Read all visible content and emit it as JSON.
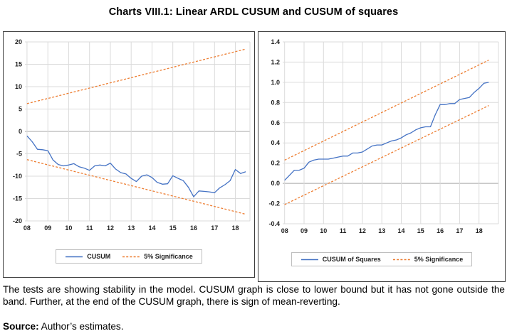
{
  "title": "Charts VIII.1: Linear ARDL CUSUM and CUSUM of squares",
  "caption": {
    "body": "The tests are showing stability in the model. CUSUM graph is close to lower bound but it has not gone outside the band. Further, at the end of the CUSUM graph, there is sign of mean-reverting.",
    "source_label": "Source:",
    "source_text": " Author’s estimates."
  },
  "colors": {
    "series_blue": "#4472C4",
    "band_orange": "#ED7D31",
    "grid": "#DBDBDB",
    "zero_line": "#A6A6A6",
    "panel_border": "#3d3d3d"
  },
  "chart_data": [
    {
      "type": "line",
      "name": "CUSUM stability test",
      "xlim": [
        7.9,
        18.7
      ],
      "ylim": [
        -20,
        20
      ],
      "x_tick_values": [
        8,
        9,
        10,
        11,
        12,
        13,
        14,
        15,
        16,
        17,
        18
      ],
      "x_tick_labels": [
        "08",
        "09",
        "10",
        "11",
        "12",
        "13",
        "14",
        "15",
        "16",
        "17",
        "18"
      ],
      "y_tick_values": [
        20,
        15,
        10,
        5,
        0,
        -5,
        -10,
        -15,
        -20
      ],
      "y_tick_labels": [
        "20",
        "15",
        "10",
        "5",
        "0",
        "-5",
        "-10",
        "-15",
        "-20"
      ],
      "grid": true,
      "right_edge_gridline": true,
      "legend_position": "bottom",
      "legend": [
        {
          "label": "CUSUM",
          "style": "solid",
          "color": "#4472C4"
        },
        {
          "label": "5% Significance",
          "style": "dashed",
          "color": "#ED7D31"
        }
      ],
      "series": [
        {
          "name": "CUSUM",
          "style": "solid",
          "color": "#4472C4",
          "x": [
            8.0,
            8.25,
            8.5,
            8.75,
            9.0,
            9.25,
            9.5,
            9.75,
            10.0,
            10.25,
            10.5,
            10.75,
            11.0,
            11.25,
            11.5,
            11.75,
            12.0,
            12.25,
            12.5,
            12.75,
            13.0,
            13.25,
            13.5,
            13.75,
            14.0,
            14.25,
            14.5,
            14.75,
            15.0,
            15.25,
            15.5,
            15.75,
            16.0,
            16.25,
            16.5,
            16.75,
            17.0,
            17.25,
            17.5,
            17.75,
            18.0,
            18.25,
            18.5
          ],
          "y": [
            -1.0,
            -2.3,
            -4.0,
            -4.1,
            -4.3,
            -6.4,
            -7.4,
            -7.7,
            -7.5,
            -7.2,
            -7.9,
            -8.2,
            -8.7,
            -7.7,
            -7.5,
            -7.7,
            -7.1,
            -8.4,
            -9.2,
            -9.5,
            -10.5,
            -11.2,
            -10.0,
            -9.7,
            -10.3,
            -11.4,
            -11.8,
            -11.7,
            -9.9,
            -10.5,
            -11.0,
            -12.5,
            -14.6,
            -13.3,
            -13.4,
            -13.5,
            -13.7,
            -12.6,
            -11.9,
            -11.0,
            -8.5,
            -9.4,
            -9.0
          ]
        },
        {
          "name": "5% Significance (upper bound)",
          "style": "dashed",
          "color": "#ED7D31",
          "x": [
            8.0,
            18.5
          ],
          "y": [
            6.2,
            18.4
          ]
        },
        {
          "name": "5% Significance (lower bound)",
          "style": "dashed",
          "color": "#ED7D31",
          "x": [
            8.0,
            18.5
          ],
          "y": [
            -6.3,
            -18.5
          ]
        }
      ]
    },
    {
      "type": "line",
      "name": "CUSUM of squares stability test",
      "xlim": [
        7.9,
        19.0
      ],
      "ylim": [
        -0.4,
        1.4
      ],
      "x_tick_values": [
        8,
        9,
        10,
        11,
        12,
        13,
        14,
        15,
        16,
        17,
        18
      ],
      "x_tick_labels": [
        "08",
        "09",
        "10",
        "11",
        "12",
        "13",
        "14",
        "15",
        "16",
        "17",
        "18"
      ],
      "y_tick_values": [
        1.4,
        1.2,
        1.0,
        0.8,
        0.6,
        0.4,
        0.2,
        0.0,
        -0.2,
        -0.4
      ],
      "y_tick_labels": [
        "1.4",
        "1.2",
        "1.0",
        "0.8",
        "0.6",
        "0.4",
        "0.2",
        "0.0",
        "-0.2",
        "-0.4"
      ],
      "grid": true,
      "right_edge_gridline": true,
      "legend_position": "bottom",
      "legend": [
        {
          "label": "CUSUM of Squares",
          "style": "solid",
          "color": "#4472C4"
        },
        {
          "label": "5% Significance",
          "style": "dashed",
          "color": "#ED7D31"
        }
      ],
      "series": [
        {
          "name": "CUSUM of Squares",
          "style": "solid",
          "color": "#4472C4",
          "x": [
            8.0,
            8.25,
            8.5,
            8.75,
            9.0,
            9.25,
            9.5,
            9.75,
            10.0,
            10.25,
            10.5,
            10.75,
            11.0,
            11.25,
            11.5,
            11.75,
            12.0,
            12.25,
            12.5,
            12.75,
            13.0,
            13.25,
            13.5,
            13.75,
            14.0,
            14.25,
            14.5,
            14.75,
            15.0,
            15.25,
            15.5,
            15.75,
            16.0,
            16.25,
            16.5,
            16.75,
            17.0,
            17.25,
            17.5,
            17.75,
            18.0,
            18.25,
            18.5
          ],
          "y": [
            0.03,
            0.08,
            0.13,
            0.13,
            0.15,
            0.21,
            0.23,
            0.24,
            0.24,
            0.24,
            0.25,
            0.26,
            0.27,
            0.27,
            0.3,
            0.3,
            0.31,
            0.34,
            0.37,
            0.38,
            0.38,
            0.4,
            0.42,
            0.43,
            0.45,
            0.48,
            0.5,
            0.53,
            0.55,
            0.56,
            0.56,
            0.68,
            0.78,
            0.78,
            0.79,
            0.79,
            0.83,
            0.84,
            0.85,
            0.9,
            0.94,
            0.99,
            1.0
          ]
        },
        {
          "name": "5% Significance (upper bound)",
          "style": "dashed",
          "color": "#ED7D31",
          "x": [
            8.0,
            18.5
          ],
          "y": [
            0.23,
            1.22
          ]
        },
        {
          "name": "5% Significance (lower bound)",
          "style": "dashed",
          "color": "#ED7D31",
          "x": [
            8.0,
            18.5
          ],
          "y": [
            -0.21,
            0.77
          ]
        }
      ]
    }
  ]
}
